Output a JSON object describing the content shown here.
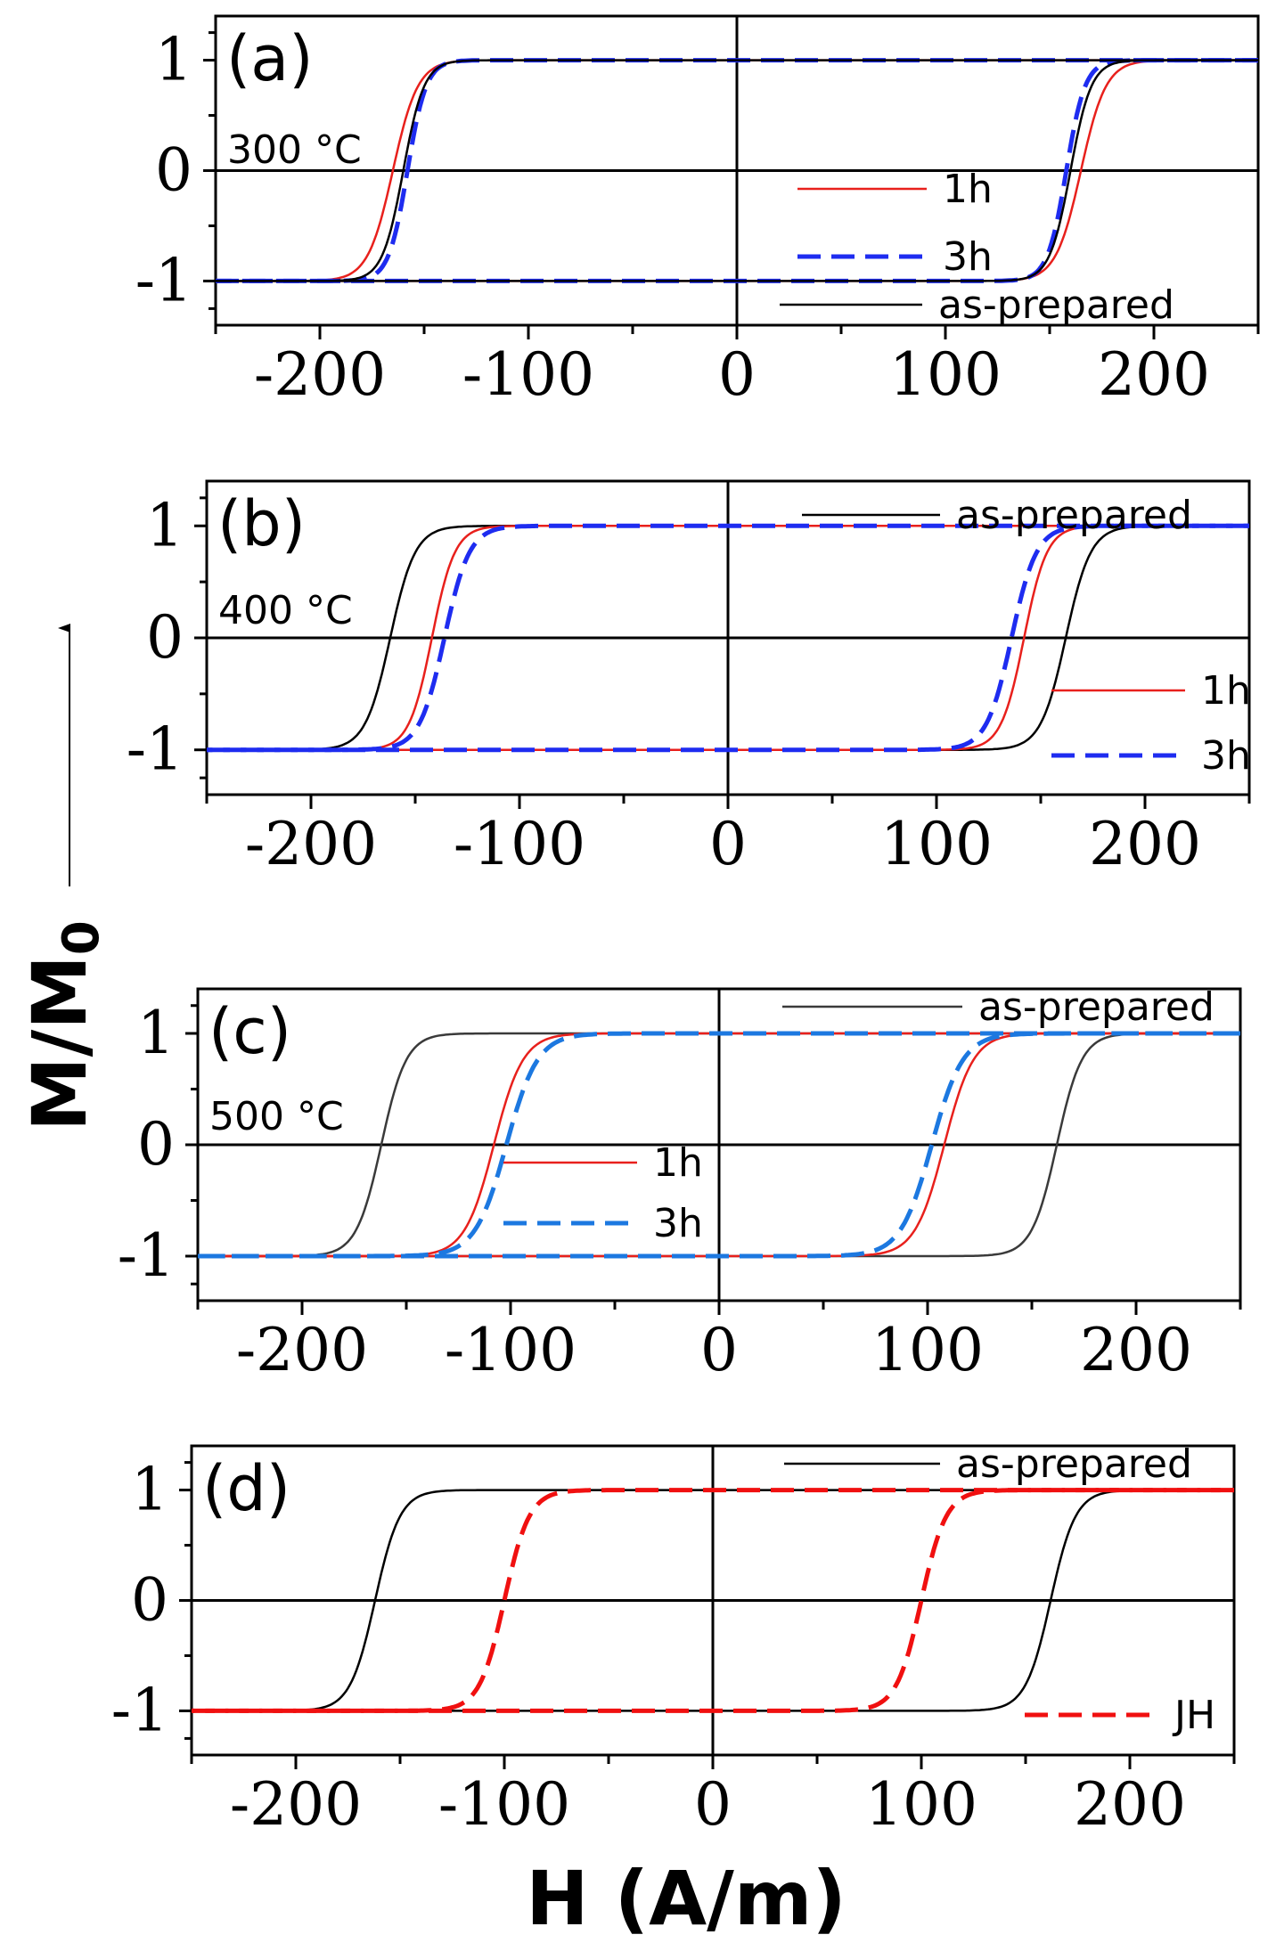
{
  "figure": {
    "ylabel": "M/M",
    "ylabel_sub": "0",
    "xlabel": "H (A/m)"
  },
  "chart_data": [
    {
      "type": "line",
      "panel": "(a)",
      "annotation": "300 °C",
      "xlim": [
        -250,
        250
      ],
      "ylim": [
        -1.4,
        1.4
      ],
      "xticks": [
        -200,
        -100,
        0,
        100,
        200
      ],
      "xtick_labels": [
        "-200",
        "-100",
        "0",
        "100",
        "200"
      ],
      "yticks": [
        1,
        0,
        -1
      ],
      "ytick_labels": [
        "1",
        "0",
        "-1"
      ],
      "legend_position": "lower-right",
      "series": [
        {
          "name": "1h",
          "color": "#e8201c",
          "style": "solid",
          "coercivity": 165,
          "width": 12
        },
        {
          "name": "3h",
          "color": "#1e2cf0",
          "style": "dashed",
          "coercivity": 158,
          "width": 9
        },
        {
          "name": "as-prepared",
          "color": "#000000",
          "style": "solid",
          "coercivity": 160,
          "width": 10
        }
      ],
      "legend_order": [
        "1h",
        "3h",
        "as-prepared"
      ]
    },
    {
      "type": "line",
      "panel": "(b)",
      "annotation": "400 °C",
      "xlim": [
        -250,
        250
      ],
      "ylim": [
        -1.4,
        1.4
      ],
      "xticks": [
        -200,
        -100,
        0,
        100,
        200
      ],
      "xtick_labels": [
        "-200",
        "-100",
        "0",
        "100",
        "200"
      ],
      "yticks": [
        1,
        0,
        -1
      ],
      "ytick_labels": [
        "1",
        "0",
        "-1"
      ],
      "legend_position": "top-right",
      "series": [
        {
          "name": "as-prepared",
          "color": "#000000",
          "style": "solid",
          "coercivity": 162,
          "width": 12
        },
        {
          "name": "1h",
          "color": "#e8201c",
          "style": "solid",
          "coercivity": 142,
          "width": 11
        },
        {
          "name": "3h",
          "color": "#1e2cf0",
          "style": "dashed",
          "coercivity": 136,
          "width": 12
        }
      ],
      "legend_order": [
        "as-prepared",
        "1h",
        "3h"
      ]
    },
    {
      "type": "line",
      "panel": "(c)",
      "annotation": "500 °C",
      "xlim": [
        -250,
        250
      ],
      "ylim": [
        -1.4,
        1.4
      ],
      "xticks": [
        -200,
        -100,
        0,
        100,
        200
      ],
      "xtick_labels": [
        "-200",
        "-100",
        "0",
        "100",
        "200"
      ],
      "yticks": [
        1,
        0,
        -1
      ],
      "ytick_labels": [
        "1",
        "0",
        "-1"
      ],
      "legend_position": "top-right",
      "series": [
        {
          "name": "as-prepared",
          "color": "#3a3a3a",
          "style": "solid",
          "coercivity": 162,
          "width": 12
        },
        {
          "name": "1h",
          "color": "#e8201c",
          "style": "solid",
          "coercivity": 108,
          "width": 14
        },
        {
          "name": "3h",
          "color": "#1c78e0",
          "style": "dashed",
          "coercivity": 102,
          "width": 15
        }
      ],
      "legend_order": [
        "as-prepared",
        "1h",
        "3h"
      ]
    },
    {
      "type": "line",
      "panel": "(d)",
      "annotation": "",
      "xlim": [
        -250,
        250
      ],
      "ylim": [
        -1.4,
        1.4
      ],
      "xticks": [
        -200,
        -100,
        0,
        100,
        200
      ],
      "xtick_labels": [
        "-200",
        "-100",
        "0",
        "100",
        "200"
      ],
      "yticks": [
        1,
        0,
        -1
      ],
      "ytick_labels": [
        "1",
        "0",
        "-1"
      ],
      "legend_position": "top-right",
      "series": [
        {
          "name": "as-prepared",
          "color": "#000000",
          "style": "solid",
          "coercivity": 162,
          "width": 12
        },
        {
          "name": "JH",
          "color": "#f01010",
          "style": "dashed",
          "coercivity": 100,
          "width": 12
        }
      ],
      "legend_order": [
        "as-prepared",
        "JH"
      ]
    }
  ]
}
